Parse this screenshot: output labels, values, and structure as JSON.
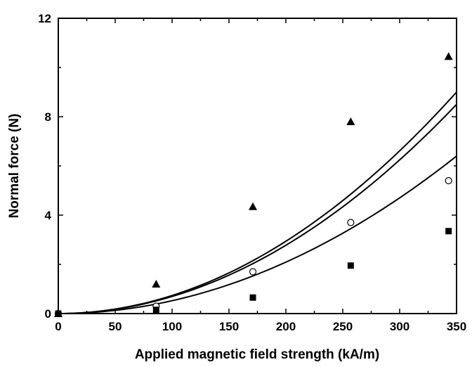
{
  "chart_data": {
    "type": "scatter",
    "title": "",
    "xlabel": "Applied magnetic field strength (kA/m)",
    "ylabel": "Normal force (N)",
    "xlim": [
      0,
      350
    ],
    "ylim": [
      0,
      12
    ],
    "x_ticks": [
      0,
      50,
      100,
      150,
      200,
      250,
      300,
      350
    ],
    "y_ticks": [
      0,
      4,
      8,
      12
    ],
    "grid": false,
    "legend": "none",
    "series": [
      {
        "marker": "triangle",
        "color": "#000000",
        "points": [
          [
            0,
            0
          ],
          [
            86,
            1.2
          ],
          [
            171,
            4.35
          ],
          [
            257,
            7.8
          ],
          [
            343,
            10.45
          ]
        ]
      },
      {
        "marker": "open-circle",
        "color": "#000000",
        "points": [
          [
            0,
            0
          ],
          [
            86,
            0.3
          ],
          [
            171,
            1.7
          ],
          [
            257,
            3.7
          ],
          [
            343,
            5.4
          ]
        ]
      },
      {
        "marker": "square",
        "color": "#000000",
        "points": [
          [
            0,
            0
          ],
          [
            86,
            0.15
          ],
          [
            171,
            0.65
          ],
          [
            257,
            1.95
          ],
          [
            343,
            3.35
          ]
        ]
      }
    ],
    "fit_curves": [
      {
        "form": "power",
        "coefficient_at_350": 9.0,
        "exponent": 2,
        "color": "#000000"
      },
      {
        "form": "power",
        "coefficient_at_350": 8.5,
        "exponent": 2,
        "color": "#000000"
      },
      {
        "form": "power",
        "coefficient_at_350": 6.4,
        "exponent": 2,
        "color": "#000000"
      }
    ]
  }
}
